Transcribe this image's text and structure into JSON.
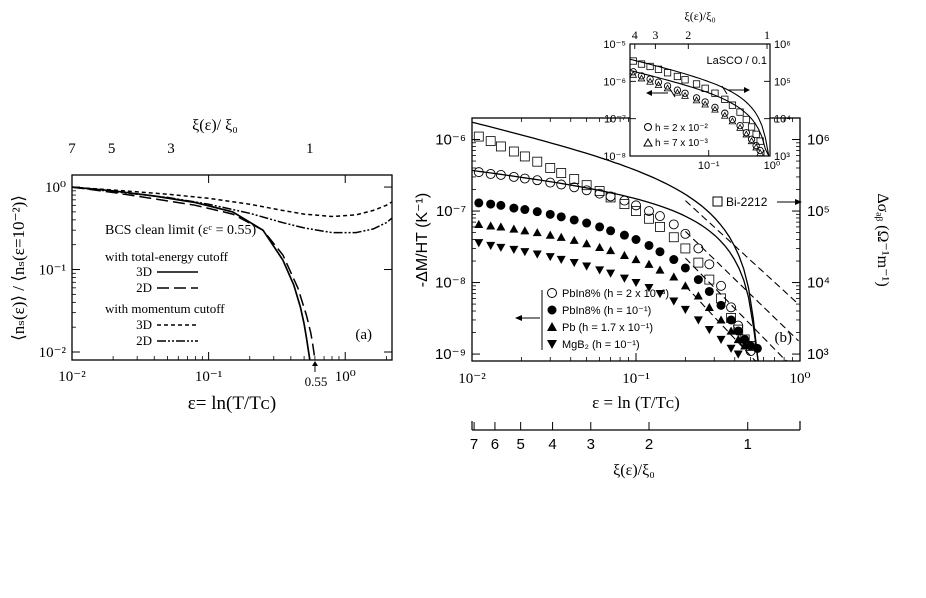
{
  "chart_data": [
    {
      "panel": "a",
      "type": "line",
      "panel_label": "(a)",
      "xscale": "log",
      "yscale": "log",
      "xlim": [
        0.01,
        2.2
      ],
      "ylim": [
        0.008,
        1.4
      ],
      "xticklabels": [
        "10⁻²",
        "10⁻¹",
        "10⁰"
      ],
      "yticklabels": [
        "10⁰",
        "10⁻¹",
        "10⁻²"
      ],
      "top_axis_label": "ξ(ε)/ ξ₀",
      "top_ticks": [
        {
          "label": "7",
          "x": 0.01
        },
        {
          "label": "5",
          "x": 0.0195
        },
        {
          "label": "3",
          "x": 0.053
        },
        {
          "label": "1",
          "x": 0.55
        }
      ],
      "ylabel": "⟨nₛ(ε)⟩ / ⟨nₛ(ε=10⁻²)⟩",
      "xlabel": "ε= ln(T/Tᴄ)",
      "marker_text": "0.55",
      "marker_x": 0.55,
      "legend_title": "BCS clean limit (εᶜ = 0.55)",
      "legend_group1": "with total-energy cutoff",
      "legend_group2": "with momentum cutoff",
      "series": [
        {
          "name": "3D",
          "group": "total-energy cutoff",
          "style": "solid",
          "x": [
            0.01,
            0.02,
            0.04,
            0.08,
            0.15,
            0.25,
            0.35,
            0.42,
            0.47,
            0.5,
            0.52,
            0.535,
            0.545,
            0.55
          ],
          "y": [
            1.0,
            0.9,
            0.78,
            0.65,
            0.5,
            0.3,
            0.13,
            0.065,
            0.035,
            0.022,
            0.015,
            0.011,
            0.009,
            0.008
          ]
        },
        {
          "name": "2D",
          "group": "total-energy cutoff",
          "style": "longdash",
          "x": [
            0.01,
            0.02,
            0.04,
            0.08,
            0.15,
            0.25,
            0.35,
            0.45,
            0.52,
            0.56,
            0.58,
            0.595,
            0.605
          ],
          "y": [
            1.0,
            0.86,
            0.72,
            0.6,
            0.47,
            0.3,
            0.15,
            0.06,
            0.028,
            0.017,
            0.012,
            0.009,
            0.008
          ]
        },
        {
          "name": "3D",
          "group": "momentum cutoff",
          "style": "dashed",
          "x": [
            0.01,
            0.02,
            0.05,
            0.1,
            0.2,
            0.35,
            0.5,
            0.8,
            1.2,
            1.6,
            2.0,
            2.2
          ],
          "y": [
            1.0,
            0.92,
            0.82,
            0.73,
            0.62,
            0.52,
            0.47,
            0.44,
            0.46,
            0.52,
            0.6,
            0.66
          ]
        },
        {
          "name": "2D",
          "group": "momentum cutoff",
          "style": "dashdotdot",
          "x": [
            0.01,
            0.02,
            0.05,
            0.1,
            0.2,
            0.35,
            0.5,
            0.8,
            1.2,
            1.6,
            2.0,
            2.2
          ],
          "y": [
            1.0,
            0.88,
            0.75,
            0.62,
            0.48,
            0.37,
            0.32,
            0.28,
            0.28,
            0.31,
            0.37,
            0.42
          ]
        }
      ]
    },
    {
      "panel": "b",
      "type": "scatter",
      "panel_label": "(b)",
      "xscale": "log",
      "yscale": "log",
      "xlim": [
        0.01,
        1.0
      ],
      "ylim": [
        8e-10,
        2e-06
      ],
      "xticklabels": [
        "10⁻²",
        "10⁻¹",
        "10⁰"
      ],
      "yticklabels": [
        "10⁻⁶",
        "10⁻⁷",
        "10⁻⁸",
        "10⁻⁹"
      ],
      "right_ticklabels": [
        "10⁶",
        "10⁵",
        "10⁴",
        "10³"
      ],
      "right_ylim": [
        800,
        2000000
      ],
      "xlabel": "ε = ln (T/Tᴄ)",
      "ylabel": "-ΔM/HT (K⁻¹)",
      "right_ylabel": "Δσₐᵦ (Ω⁻¹m⁻¹)",
      "bottom_axis_label": "ξ(ε)/ξ₀",
      "bottom_ticks": [
        {
          "label": "7",
          "x": 0.0103
        },
        {
          "label": "6",
          "x": 0.0138
        },
        {
          "label": "5",
          "x": 0.0198
        },
        {
          "label": "4",
          "x": 0.031
        },
        {
          "label": "3",
          "x": 0.053
        },
        {
          "label": "2",
          "x": 0.12
        },
        {
          "label": "1",
          "x": 0.48
        }
      ],
      "bi_label": "Bi-2212",
      "series": [
        {
          "name": "PbIn8% (h = 2 x 10⁻³)",
          "marker": "open-circle",
          "axis": "left",
          "x": [
            0.011,
            0.013,
            0.015,
            0.018,
            0.021,
            0.025,
            0.03,
            0.035,
            0.042,
            0.05,
            0.06,
            0.07,
            0.085,
            0.1,
            0.12,
            0.14,
            0.17,
            0.2,
            0.24,
            0.28,
            0.33,
            0.38,
            0.42,
            0.46,
            0.5
          ],
          "y": [
            3.5e-07,
            3.3e-07,
            3.2e-07,
            3e-07,
            2.85e-07,
            2.7e-07,
            2.5e-07,
            2.35e-07,
            2.15e-07,
            1.95e-07,
            1.75e-07,
            1.6e-07,
            1.4e-07,
            1.2e-07,
            1e-07,
            8.5e-08,
            6.5e-08,
            4.8e-08,
            3e-08,
            1.8e-08,
            9e-09,
            4.5e-09,
            2.5e-09,
            1.5e-09,
            1.1e-09
          ]
        },
        {
          "name": "PbIn8% (h = 10⁻¹)",
          "marker": "filled-circle",
          "axis": "left",
          "x": [
            0.011,
            0.013,
            0.015,
            0.018,
            0.021,
            0.025,
            0.03,
            0.035,
            0.042,
            0.05,
            0.06,
            0.07,
            0.085,
            0.1,
            0.12,
            0.14,
            0.17,
            0.2,
            0.24,
            0.28,
            0.33,
            0.38,
            0.42,
            0.46,
            0.5,
            0.55
          ],
          "y": [
            1.3e-07,
            1.25e-07,
            1.2e-07,
            1.1e-07,
            1.05e-07,
            9.8e-08,
            9e-08,
            8.3e-08,
            7.5e-08,
            6.8e-08,
            6e-08,
            5.3e-08,
            4.6e-08,
            4e-08,
            3.3e-08,
            2.7e-08,
            2.1e-08,
            1.6e-08,
            1.1e-08,
            7.5e-09,
            4.8e-09,
            3e-09,
            2.1e-09,
            1.6e-09,
            1.3e-09,
            1.2e-09
          ]
        },
        {
          "name": "Pb (h = 1.7 x 10⁻¹)",
          "marker": "filled-triangle-up",
          "axis": "left",
          "x": [
            0.011,
            0.013,
            0.015,
            0.018,
            0.021,
            0.025,
            0.03,
            0.035,
            0.042,
            0.05,
            0.06,
            0.07,
            0.085,
            0.1,
            0.12,
            0.14,
            0.17,
            0.2,
            0.24,
            0.28,
            0.33,
            0.38,
            0.42,
            0.46
          ],
          "y": [
            6.5e-08,
            6.2e-08,
            6e-08,
            5.6e-08,
            5.3e-08,
            5e-08,
            4.6e-08,
            4.3e-08,
            3.9e-08,
            3.5e-08,
            3.1e-08,
            2.8e-08,
            2.4e-08,
            2.1e-08,
            1.8e-08,
            1.5e-08,
            1.2e-08,
            9e-09,
            6.5e-09,
            4.5e-09,
            3e-09,
            2.1e-09,
            1.6e-09,
            1.3e-09
          ]
        },
        {
          "name": "MgB₂ (h = 10⁻¹)",
          "marker": "filled-triangle-down",
          "axis": "left",
          "x": [
            0.011,
            0.013,
            0.015,
            0.018,
            0.021,
            0.025,
            0.03,
            0.035,
            0.042,
            0.05,
            0.06,
            0.07,
            0.085,
            0.1,
            0.12,
            0.14,
            0.17,
            0.2,
            0.24,
            0.28,
            0.33,
            0.38,
            0.42
          ],
          "y": [
            3.6e-08,
            3.3e-08,
            3.1e-08,
            2.9e-08,
            2.7e-08,
            2.5e-08,
            2.3e-08,
            2.1e-08,
            1.9e-08,
            1.7e-08,
            1.5e-08,
            1.35e-08,
            1.15e-08,
            1e-08,
            8.5e-09,
            7e-09,
            5.5e-09,
            4.2e-09,
            3e-09,
            2.2e-09,
            1.6e-09,
            1.2e-09,
            1e-09
          ]
        },
        {
          "name": "Bi-2212",
          "marker": "open-square",
          "axis": "right",
          "x": [
            0.011,
            0.013,
            0.015,
            0.018,
            0.021,
            0.025,
            0.03,
            0.035,
            0.042,
            0.05,
            0.06,
            0.07,
            0.085,
            0.1,
            0.12,
            0.14,
            0.17,
            0.2,
            0.24,
            0.28,
            0.33,
            0.38,
            0.42,
            0.46,
            0.5
          ],
          "y": [
            1100000.0,
            950000.0,
            800000.0,
            680000.0,
            580000.0,
            490000.0,
            400000.0,
            340000.0,
            280000.0,
            230000.0,
            190000.0,
            155000.0,
            125000.0,
            100000.0,
            78000.0,
            60000.0,
            43000.0,
            30000.0,
            19000.0,
            11000.0,
            6000.0,
            3200.0,
            2200.0,
            1600.0,
            1300.0
          ]
        }
      ]
    },
    {
      "panel": "inset",
      "type": "scatter",
      "xscale": "log",
      "yscale": "log",
      "xlim": [
        0.01,
        0.6
      ],
      "ylim": [
        1e-08,
        1e-05
      ],
      "xticklabels": [
        "10⁻¹",
        "10⁰"
      ],
      "yticklabels": [
        "10⁻⁵",
        "10⁻⁶",
        "10⁻⁷",
        "10⁻⁸"
      ],
      "right_ticklabels": [
        "10⁶",
        "10⁵",
        "10⁴",
        "10³"
      ],
      "top_axis_label": "ξ(ε)/ξ₀",
      "top_ticks": [
        {
          "label": "4",
          "x": 0.0115
        },
        {
          "label": "3",
          "x": 0.021
        },
        {
          "label": "2",
          "x": 0.055
        },
        {
          "label": "1",
          "x": 0.55
        }
      ],
      "lasco_label": "LaSCO / 0.1",
      "series": [
        {
          "name": "h = 2 x 10⁻²",
          "marker": "open-circle",
          "x": [
            0.011,
            0.014,
            0.018,
            0.023,
            0.03,
            0.04,
            0.05,
            0.07,
            0.09,
            0.12,
            0.16,
            0.2,
            0.25,
            0.3,
            0.35,
            0.4,
            0.45
          ],
          "y": [
            1.8e-06,
            1.4e-06,
            1.15e-06,
            9.5e-07,
            7.5e-07,
            5.8e-07,
            4.8e-07,
            3.6e-07,
            2.8e-07,
            2e-07,
            1.4e-07,
            9.5e-08,
            6.5e-08,
            4.2e-08,
            2.8e-08,
            1.9e-08,
            1.4e-08
          ]
        },
        {
          "name": "h = 7 x 10⁻³",
          "marker": "open-triangle-up",
          "x": [
            0.011,
            0.014,
            0.018,
            0.023,
            0.03,
            0.04,
            0.05,
            0.07,
            0.09,
            0.12,
            0.16,
            0.2,
            0.25,
            0.3,
            0.35,
            0.4,
            0.45
          ],
          "y": [
            1.5e-06,
            1.2e-06,
            9.8e-07,
            8e-07,
            6.5e-07,
            5e-07,
            4.1e-07,
            3.1e-07,
            2.4e-07,
            1.75e-07,
            1.2e-07,
            8.5e-08,
            5.7e-08,
            3.8e-08,
            2.5e-08,
            1.7e-08,
            1.2e-08
          ]
        },
        {
          "name": "LaSCO / 0.1",
          "marker": "open-square",
          "x": [
            0.011,
            0.014,
            0.018,
            0.023,
            0.03,
            0.04,
            0.05,
            0.07,
            0.09,
            0.12,
            0.16,
            0.2,
            0.25,
            0.3,
            0.35,
            0.4,
            0.45
          ],
          "y": [
            3.5e-06,
            2.9e-06,
            2.5e-06,
            2.1e-06,
            1.7e-06,
            1.35e-06,
            1.1e-06,
            8.5e-07,
            6.5e-07,
            4.8e-07,
            3.3e-07,
            2.3e-07,
            1.5e-07,
            9.5e-08,
            6e-08,
            3.8e-08,
            2.5e-08
          ]
        }
      ]
    }
  ]
}
